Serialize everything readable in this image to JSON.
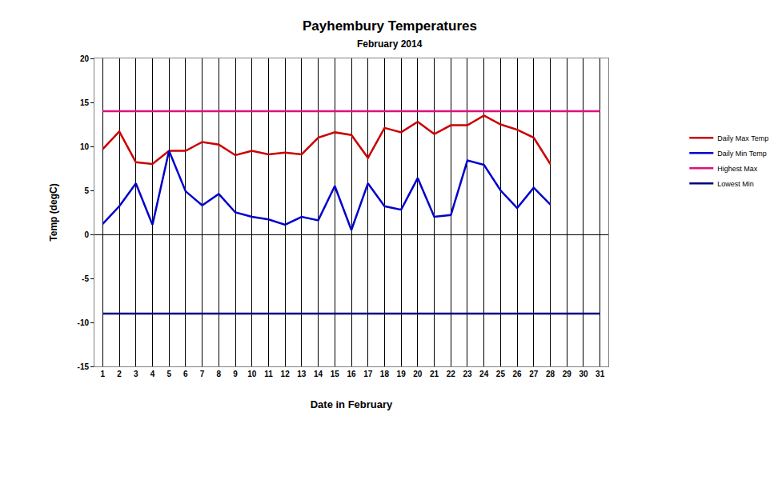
{
  "chart_data": {
    "type": "line",
    "title": "Payhembury Temperatures",
    "subtitle": "February 2014",
    "x_label": "Date in February",
    "y_label": "Temp (degC)",
    "x": [
      1,
      2,
      3,
      4,
      5,
      6,
      7,
      8,
      9,
      10,
      11,
      12,
      13,
      14,
      15,
      16,
      17,
      18,
      19,
      20,
      21,
      22,
      23,
      24,
      25,
      26,
      27,
      28,
      29,
      30,
      31
    ],
    "xlim": [
      0.5,
      31.5
    ],
    "xticks": [
      1,
      2,
      3,
      4,
      5,
      6,
      7,
      8,
      9,
      10,
      11,
      12,
      13,
      14,
      15,
      16,
      17,
      18,
      19,
      20,
      21,
      22,
      23,
      24,
      25,
      26,
      27,
      28,
      29,
      30,
      31
    ],
    "ylim": [
      -15,
      20
    ],
    "yticks": [
      -15,
      -10,
      -5,
      0,
      5,
      10,
      15,
      20
    ],
    "grid": true,
    "legend": "right",
    "series": [
      {
        "name": "Daily Max Temp",
        "color": "#cc0000",
        "line_style": "solid",
        "values": [
          9.7,
          11.7,
          8.2,
          8.0,
          9.5,
          9.5,
          10.5,
          10.2,
          9.0,
          9.5,
          9.1,
          9.3,
          9.1,
          11.0,
          11.6,
          11.3,
          8.7,
          12.1,
          11.6,
          12.8,
          11.4,
          12.4,
          12.4,
          13.5,
          12.5,
          11.9,
          11.0,
          8.0,
          null,
          null,
          null
        ]
      },
      {
        "name": "Daily Min Temp",
        "color": "#0000cc",
        "line_style": "solid",
        "values": [
          1.2,
          3.2,
          5.8,
          1.1,
          9.5,
          4.9,
          3.3,
          4.6,
          2.5,
          2.0,
          1.7,
          1.1,
          2.0,
          1.6,
          5.5,
          0.5,
          5.8,
          3.2,
          2.8,
          6.4,
          2.0,
          2.2,
          8.4,
          7.9,
          5.0,
          3.0,
          5.3,
          3.4,
          null,
          null,
          null
        ]
      },
      {
        "name": "Highest Max",
        "color": "#e0107f",
        "line_style": "solid",
        "values": [
          14,
          14,
          14,
          14,
          14,
          14,
          14,
          14,
          14,
          14,
          14,
          14,
          14,
          14,
          14,
          14,
          14,
          14,
          14,
          14,
          14,
          14,
          14,
          14,
          14,
          14,
          14,
          14,
          14,
          14,
          14
        ]
      },
      {
        "name": "Lowest Min",
        "color": "#000080",
        "line_style": "solid",
        "values": [
          -9,
          -9,
          -9,
          -9,
          -9,
          -9,
          -9,
          -9,
          -9,
          -9,
          -9,
          -9,
          -9,
          -9,
          -9,
          -9,
          -9,
          -9,
          -9,
          -9,
          -9,
          -9,
          -9,
          -9,
          -9,
          -9,
          -9,
          -9,
          -9,
          -9,
          -9
        ]
      }
    ]
  }
}
